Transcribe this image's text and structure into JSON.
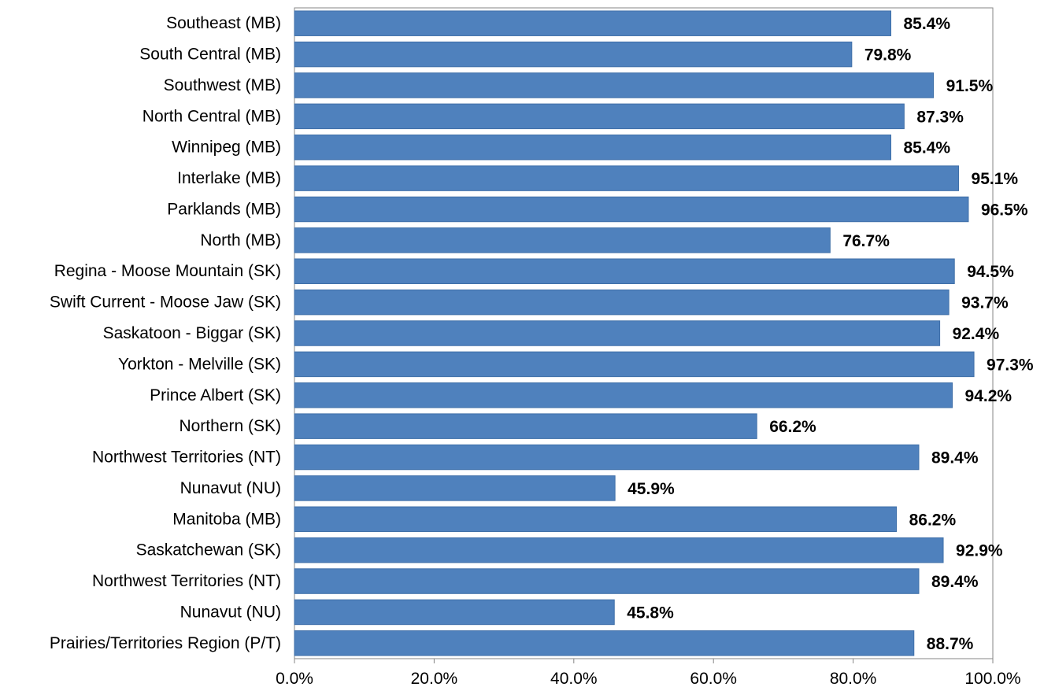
{
  "chart_data": {
    "type": "bar",
    "orientation": "horizontal",
    "title": "",
    "xlabel": "",
    "ylabel": "",
    "categories": [
      "Southeast (MB)",
      "South Central (MB)",
      "Southwest (MB)",
      "North Central (MB)",
      "Winnipeg (MB)",
      "Interlake (MB)",
      "Parklands (MB)",
      "North (MB)",
      "Regina - Moose Mountain (SK)",
      "Swift Current - Moose Jaw (SK)",
      "Saskatoon - Biggar (SK)",
      "Yorkton - Melville (SK)",
      "Prince Albert (SK)",
      "Northern (SK)",
      "Northwest Territories (NT)",
      "Nunavut (NU)",
      "Manitoba (MB)",
      "Saskatchewan (SK)",
      "Northwest Territories (NT)",
      "Nunavut (NU)",
      "Prairies/Territories Region (P/T)"
    ],
    "values": [
      85.4,
      79.8,
      91.5,
      87.3,
      85.4,
      95.1,
      96.5,
      76.7,
      94.5,
      93.7,
      92.4,
      97.3,
      94.2,
      66.2,
      89.4,
      45.9,
      86.2,
      92.9,
      89.4,
      45.8,
      88.7
    ],
    "value_labels": [
      "85.4%",
      "79.8%",
      "91.5%",
      "87.3%",
      "85.4%",
      "95.1%",
      "96.5%",
      "76.7%",
      "94.5%",
      "93.7%",
      "92.4%",
      "97.3%",
      "94.2%",
      "66.2%",
      "89.4%",
      "45.9%",
      "86.2%",
      "92.9%",
      "89.4%",
      "45.8%",
      "88.7%"
    ],
    "xlim": [
      0,
      100
    ],
    "x_ticks": [
      0,
      20,
      40,
      60,
      80,
      100
    ],
    "x_tick_labels": [
      "0.0%",
      "20.0%",
      "40.0%",
      "60.0%",
      "80.0%",
      "100.0%"
    ],
    "grid": false,
    "legend": "none",
    "colors": {
      "bar": "#4F81BD",
      "bar_edge": "#3F6FA8",
      "axis": "#868686",
      "plot_border": "#868686",
      "text": "#000000"
    }
  }
}
